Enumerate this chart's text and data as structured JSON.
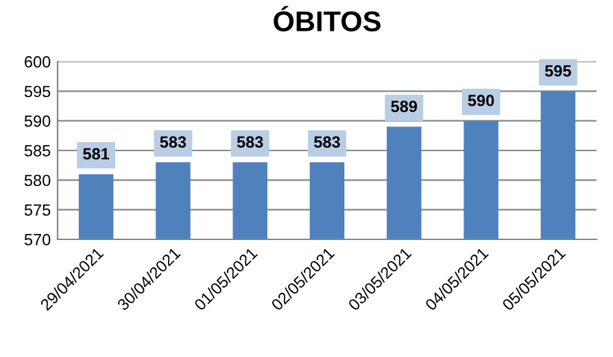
{
  "chart_data": {
    "type": "bar",
    "title": "ÓBITOS",
    "categories": [
      "29/04/2021",
      "30/04/2021",
      "01/05/2021",
      "02/05/2021",
      "03/05/2021",
      "04/05/2021",
      "05/05/2021"
    ],
    "values": [
      581,
      583,
      583,
      583,
      589,
      590,
      595
    ],
    "color": "#4f81bd",
    "ylim": [
      570,
      600
    ],
    "yticks": [
      570,
      575,
      580,
      585,
      590,
      595,
      600
    ],
    "grid": "y",
    "data_labels": true
  }
}
